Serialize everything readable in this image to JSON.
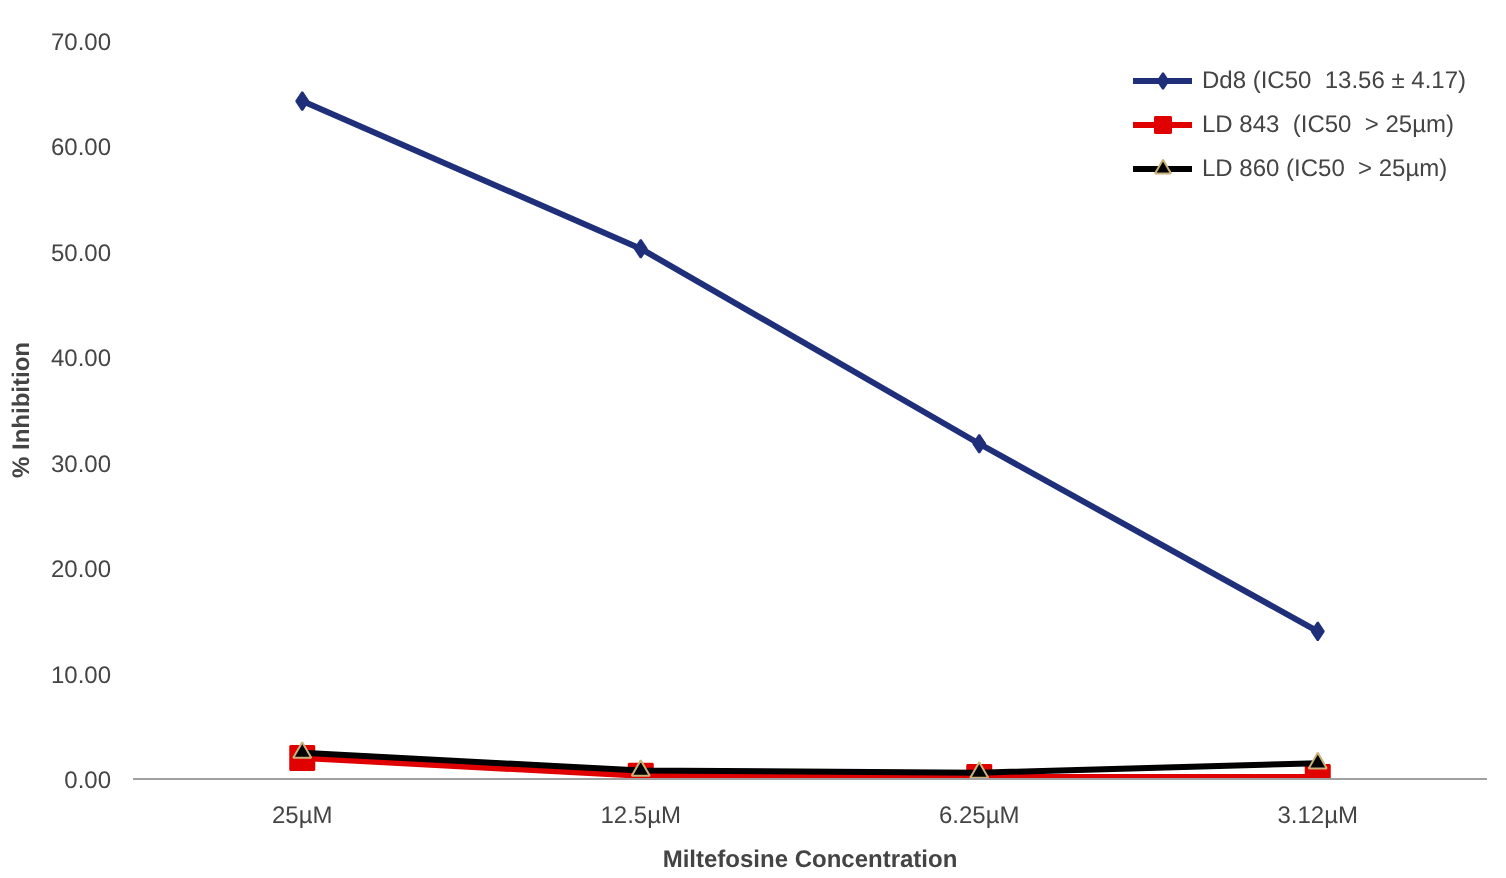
{
  "chart_data": {
    "type": "line",
    "xlabel": "Miltefosine Concentration",
    "ylabel": "% Inhibition",
    "categories": [
      "25µM",
      "12.5µM",
      "6.25µM",
      "3.12µM"
    ],
    "series": [
      {
        "name": "Dd8 (IC50  13.56 ± 4.17)",
        "color": "#1f2f7a",
        "marker": "diamond",
        "values": [
          64.3,
          50.3,
          31.8,
          14.0
        ]
      },
      {
        "name": "LD 843  (IC50  > 25µm)",
        "color": "#e00000",
        "marker": "square",
        "values": [
          2.0,
          0.3,
          0.2,
          0.2
        ]
      },
      {
        "name": "LD 860 (IC50  > 25µm)",
        "color": "#000000",
        "marker": "triangle",
        "values": [
          2.5,
          0.8,
          0.6,
          1.5
        ]
      }
    ],
    "ylim": [
      0,
      70
    ],
    "yticks": [
      {
        "value": 0,
        "label": "0.00"
      },
      {
        "value": 10,
        "label": "10.00"
      },
      {
        "value": 20,
        "label": "20.00"
      },
      {
        "value": 30,
        "label": "30.00"
      },
      {
        "value": 40,
        "label": "40.00"
      },
      {
        "value": 50,
        "label": "50.00"
      },
      {
        "value": 60,
        "label": "60.00"
      },
      {
        "value": 70,
        "label": "70.00"
      }
    ],
    "grid": false,
    "legend": "top right",
    "line_style": "solid"
  }
}
